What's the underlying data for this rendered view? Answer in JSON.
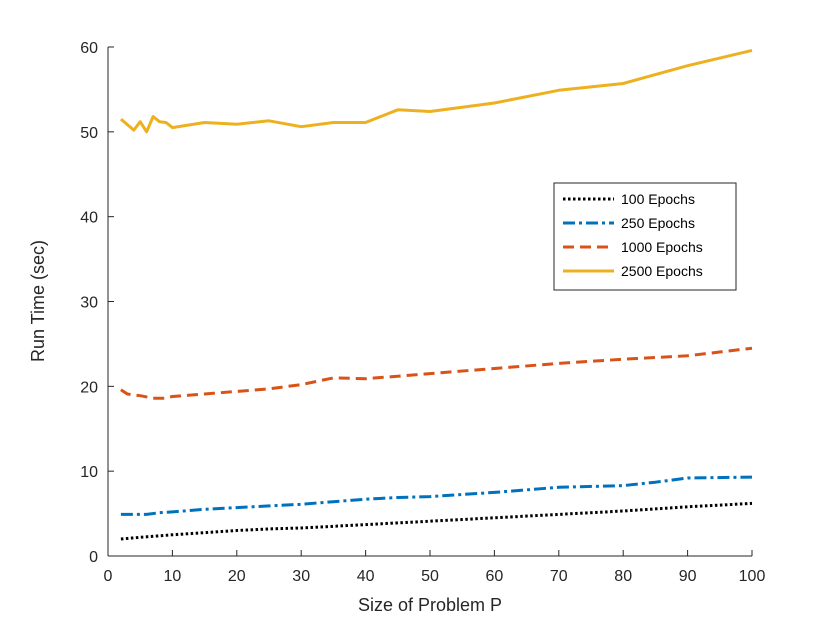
{
  "chart_data": {
    "type": "line",
    "title": "",
    "xlabel": "Size of Problem P",
    "ylabel": "Run Time (sec)",
    "xlim": [
      0,
      100
    ],
    "ylim": [
      0,
      60
    ],
    "xticks": [
      0,
      10,
      20,
      30,
      40,
      50,
      60,
      70,
      80,
      90,
      100
    ],
    "yticks": [
      0,
      10,
      20,
      30,
      40,
      50,
      60
    ],
    "grid": false,
    "legend_position": "right-center",
    "series": [
      {
        "name": "100 Epochs",
        "color": "#000000",
        "style": "dotted",
        "x": [
          2,
          5,
          10,
          20,
          25,
          30,
          35,
          40,
          45,
          50,
          60,
          70,
          80,
          90,
          100
        ],
        "y": [
          2.0,
          2.2,
          2.5,
          3.0,
          3.2,
          3.3,
          3.5,
          3.7,
          3.9,
          4.1,
          4.5,
          4.9,
          5.3,
          5.8,
          6.2
        ]
      },
      {
        "name": "250 Epochs",
        "color": "#0072BD",
        "style": "dashdot",
        "x": [
          2,
          4,
          6,
          8,
          10,
          15,
          20,
          25,
          30,
          35,
          40,
          45,
          50,
          60,
          70,
          80,
          85,
          90,
          100
        ],
        "y": [
          4.9,
          4.9,
          4.9,
          5.1,
          5.2,
          5.5,
          5.7,
          5.9,
          6.1,
          6.4,
          6.7,
          6.9,
          7.0,
          7.5,
          8.1,
          8.3,
          8.7,
          9.2,
          9.3
        ]
      },
      {
        "name": "1000 Epochs",
        "color": "#D95319",
        "style": "dashed",
        "x": [
          2,
          3,
          5,
          7,
          9,
          10,
          15,
          20,
          25,
          30,
          35,
          40,
          45,
          50,
          60,
          70,
          80,
          90,
          100
        ],
        "y": [
          19.6,
          19.1,
          18.9,
          18.6,
          18.6,
          18.8,
          19.1,
          19.4,
          19.7,
          20.2,
          21.0,
          20.9,
          21.2,
          21.5,
          22.1,
          22.7,
          23.2,
          23.6,
          24.5
        ]
      },
      {
        "name": "2500 Epochs",
        "color": "#EDB120",
        "style": "solid",
        "x": [
          2,
          4,
          5,
          6,
          7,
          8,
          9,
          10,
          15,
          20,
          25,
          30,
          35,
          40,
          45,
          50,
          60,
          70,
          80,
          90,
          100
        ],
        "y": [
          51.5,
          50.2,
          51.2,
          50.0,
          51.8,
          51.2,
          51.1,
          50.5,
          51.1,
          50.9,
          51.3,
          50.6,
          51.1,
          51.1,
          52.6,
          52.4,
          53.4,
          54.9,
          55.7,
          57.8,
          59.6
        ]
      }
    ]
  }
}
